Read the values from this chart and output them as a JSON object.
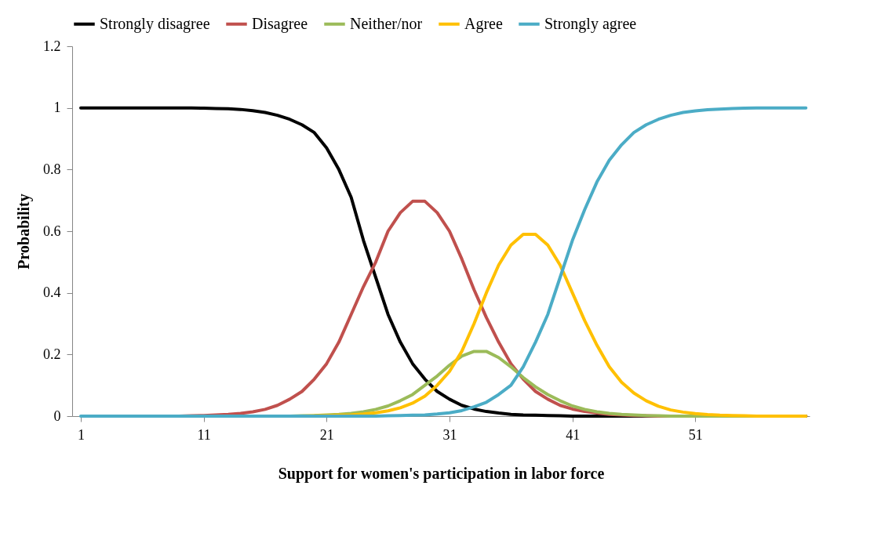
{
  "chart_data": {
    "type": "line",
    "xlabel": "Support for women's participation in labor force",
    "ylabel": "Probability",
    "x": [
      1,
      2,
      3,
      4,
      5,
      6,
      7,
      8,
      9,
      10,
      11,
      12,
      13,
      14,
      15,
      16,
      17,
      18,
      19,
      20,
      21,
      22,
      23,
      24,
      25,
      26,
      27,
      28,
      29,
      30,
      31,
      32,
      33,
      34,
      35,
      36,
      37,
      38,
      39,
      40,
      41,
      42,
      43,
      44,
      45,
      46,
      47,
      48,
      49,
      50,
      51,
      52,
      53,
      54,
      55,
      56,
      57,
      58,
      59,
      60
    ],
    "series": [
      {
        "name": "Strongly disagree",
        "color": "#000000",
        "values": [
          1,
          1,
          1,
          1,
          1,
          1,
          1,
          1,
          1,
          1,
          0.999,
          0.998,
          0.997,
          0.995,
          0.991,
          0.985,
          0.976,
          0.963,
          0.945,
          0.92,
          0.87,
          0.8,
          0.71,
          0.57,
          0.45,
          0.33,
          0.24,
          0.17,
          0.12,
          0.08,
          0.055,
          0.035,
          0.023,
          0.015,
          0.01,
          0.006,
          0.004,
          0.003,
          0.002,
          0.001,
          0,
          0,
          0,
          0,
          0,
          0,
          0,
          0,
          0,
          0,
          0,
          0,
          0,
          0,
          0,
          0,
          0,
          0,
          0,
          0
        ]
      },
      {
        "name": "Disagree",
        "color": "#c0504d",
        "values": [
          null,
          null,
          null,
          null,
          null,
          null,
          null,
          0,
          0,
          0.001,
          0.002,
          0.004,
          0.006,
          0.009,
          0.014,
          0.022,
          0.035,
          0.055,
          0.08,
          0.12,
          0.17,
          0.24,
          0.33,
          0.42,
          0.5,
          0.6,
          0.66,
          0.697,
          0.697,
          0.66,
          0.6,
          0.51,
          0.41,
          0.32,
          0.24,
          0.17,
          0.12,
          0.08,
          0.055,
          0.035,
          0.023,
          0.015,
          0.01,
          0.006,
          0.004,
          0.002,
          0.001,
          0,
          0,
          0,
          0,
          0,
          0,
          0,
          0,
          0,
          0,
          0,
          0,
          0
        ]
      },
      {
        "name": "Neither/nor",
        "color": "#9bbb59",
        "values": [
          null,
          null,
          null,
          null,
          null,
          null,
          null,
          null,
          null,
          null,
          null,
          null,
          null,
          null,
          null,
          null,
          null,
          0,
          0.001,
          0.002,
          0.004,
          0.006,
          0.009,
          0.014,
          0.022,
          0.033,
          0.05,
          0.07,
          0.1,
          0.13,
          0.165,
          0.195,
          0.21,
          0.21,
          0.19,
          0.16,
          0.125,
          0.095,
          0.07,
          0.05,
          0.033,
          0.022,
          0.014,
          0.009,
          0.006,
          0.004,
          0.002,
          0.001,
          0,
          0,
          0,
          0,
          0,
          0,
          0,
          0,
          0,
          0,
          0,
          0
        ]
      },
      {
        "name": "Agree",
        "color": "#ffc000",
        "values": [
          null,
          null,
          null,
          null,
          null,
          null,
          null,
          null,
          null,
          null,
          null,
          null,
          null,
          null,
          null,
          null,
          null,
          null,
          0,
          0.001,
          0.002,
          0.003,
          0.004,
          0.007,
          0.011,
          0.017,
          0.027,
          0.042,
          0.065,
          0.1,
          0.145,
          0.21,
          0.3,
          0.4,
          0.49,
          0.555,
          0.59,
          0.59,
          0.555,
          0.49,
          0.4,
          0.31,
          0.23,
          0.16,
          0.11,
          0.075,
          0.05,
          0.032,
          0.02,
          0.013,
          0.008,
          0.005,
          0.003,
          0.002,
          0.001,
          0,
          0,
          0,
          0,
          0
        ]
      },
      {
        "name": "Strongly agree",
        "color": "#4bacc6",
        "values": [
          0,
          0,
          0,
          0,
          0,
          0,
          0,
          0,
          0,
          0,
          0,
          0,
          0,
          0,
          0,
          0,
          0,
          0,
          0,
          0,
          0,
          0,
          0,
          0,
          0,
          0.001,
          0.002,
          0.003,
          0.004,
          0.007,
          0.011,
          0.018,
          0.03,
          0.045,
          0.07,
          0.1,
          0.16,
          0.24,
          0.33,
          0.45,
          0.57,
          0.67,
          0.76,
          0.83,
          0.88,
          0.92,
          0.945,
          0.963,
          0.976,
          0.985,
          0.99,
          0.994,
          0.996,
          0.998,
          0.999,
          1,
          1,
          1,
          1,
          1
        ]
      }
    ],
    "xlim": [
      0.3,
      60.3
    ],
    "xticks": [
      1,
      11,
      21,
      31,
      41,
      51
    ],
    "ylim": [
      0,
      1.2
    ],
    "yticks": [
      0,
      0.2,
      0.4,
      0.6,
      0.8,
      1,
      1.2
    ],
    "grid": false,
    "legend": "top",
    "marker": "none",
    "line_style": "solid"
  }
}
